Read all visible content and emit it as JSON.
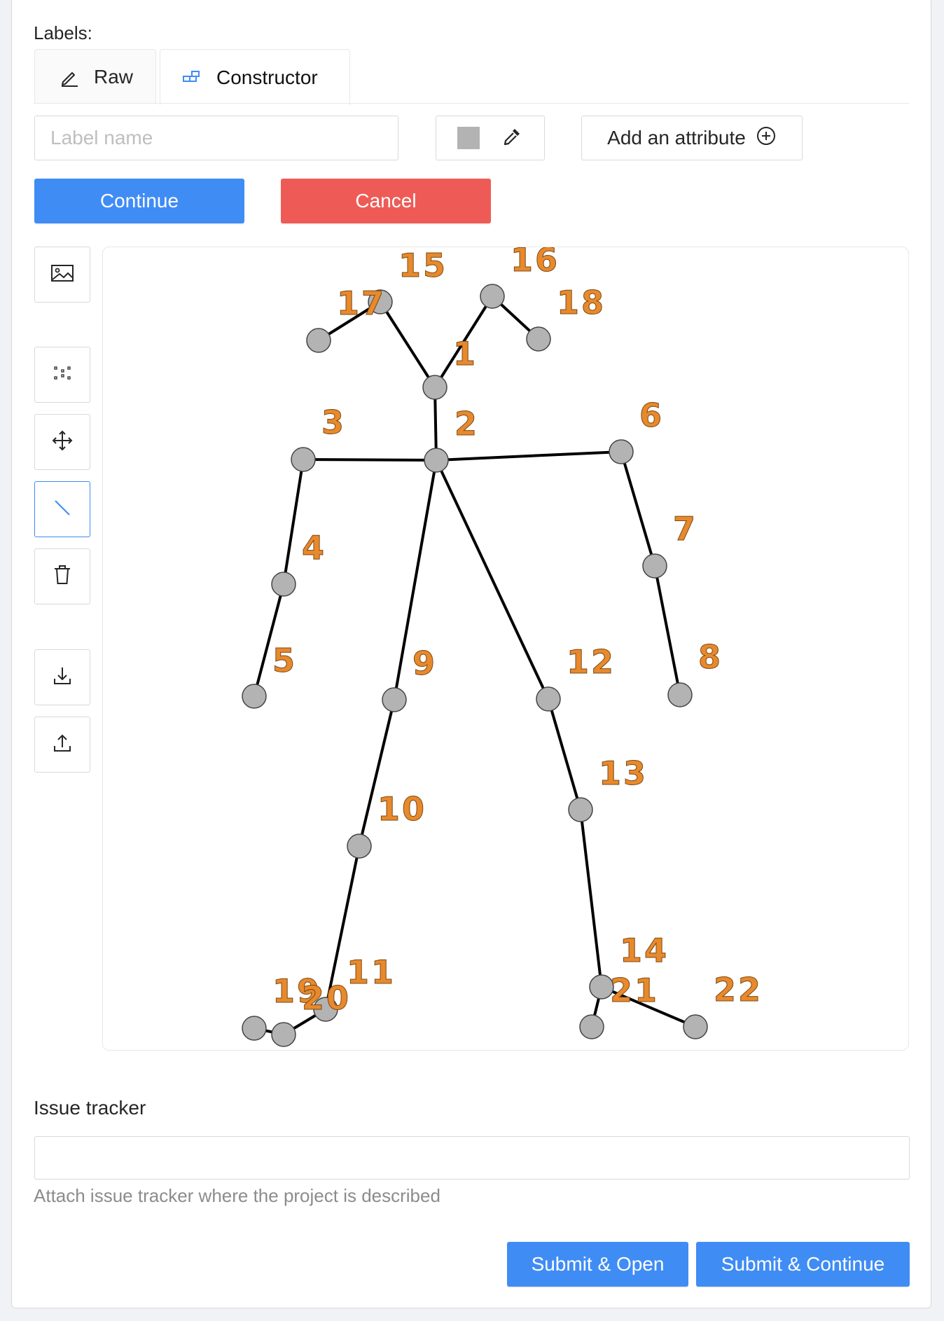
{
  "labels_section": {
    "title": "Labels:"
  },
  "tabs": [
    {
      "label": "Raw",
      "icon": "edit-icon",
      "active": false
    },
    {
      "label": "Constructor",
      "icon": "build-icon",
      "active": true
    }
  ],
  "label_form": {
    "name_placeholder": "Label name",
    "name_value": "",
    "color": "#b3b3b3",
    "add_attribute_label": "Add an attribute"
  },
  "actions": {
    "continue_label": "Continue",
    "cancel_label": "Cancel"
  },
  "toolbar": [
    {
      "icon": "image-icon",
      "active": false
    },
    {
      "icon": "points-icon",
      "active": false
    },
    {
      "icon": "move-icon",
      "active": false
    },
    {
      "icon": "line-icon",
      "active": true
    },
    {
      "icon": "delete-icon",
      "active": false
    },
    {
      "icon": "download-icon",
      "active": false
    },
    {
      "icon": "upload-icon",
      "active": false
    }
  ],
  "skeleton": {
    "point_color": "#b3b3b3",
    "number_color": "#e8892c",
    "points": [
      {
        "id": "1",
        "label": "1"
      },
      {
        "id": "2",
        "label": "2"
      },
      {
        "id": "3",
        "label": "3"
      },
      {
        "id": "4",
        "label": "4"
      },
      {
        "id": "5",
        "label": "5"
      },
      {
        "id": "6",
        "label": "6"
      },
      {
        "id": "7",
        "label": "7"
      },
      {
        "id": "8",
        "label": "8"
      },
      {
        "id": "9",
        "label": "9"
      },
      {
        "id": "10",
        "label": "10"
      },
      {
        "id": "11",
        "label": "11"
      },
      {
        "id": "12",
        "label": "12"
      },
      {
        "id": "13",
        "label": "13"
      },
      {
        "id": "14",
        "label": "14"
      },
      {
        "id": "15",
        "label": "15"
      },
      {
        "id": "16",
        "label": "16"
      },
      {
        "id": "17",
        "label": "17"
      },
      {
        "id": "18",
        "label": "18"
      },
      {
        "id": "19",
        "label": "19"
      },
      {
        "id": "20",
        "label": "20"
      },
      {
        "id": "21",
        "label": "21"
      },
      {
        "id": "22",
        "label": "22"
      }
    ],
    "edges": [
      [
        "1",
        "15"
      ],
      [
        "1",
        "16"
      ],
      [
        "15",
        "17"
      ],
      [
        "16",
        "18"
      ],
      [
        "1",
        "2"
      ],
      [
        "2",
        "3"
      ],
      [
        "3",
        "4"
      ],
      [
        "4",
        "5"
      ],
      [
        "2",
        "6"
      ],
      [
        "6",
        "7"
      ],
      [
        "7",
        "8"
      ],
      [
        "2",
        "9"
      ],
      [
        "9",
        "10"
      ],
      [
        "10",
        "11"
      ],
      [
        "11",
        "20"
      ],
      [
        "20",
        "19"
      ],
      [
        "2",
        "12"
      ],
      [
        "12",
        "13"
      ],
      [
        "13",
        "14"
      ],
      [
        "14",
        "21"
      ],
      [
        "14",
        "22"
      ]
    ]
  },
  "issue_tracker": {
    "title": "Issue tracker",
    "value": "",
    "help": "Attach issue tracker where the project is described"
  },
  "submit": {
    "open_label": "Submit & Open",
    "continue_label": "Submit & Continue"
  }
}
